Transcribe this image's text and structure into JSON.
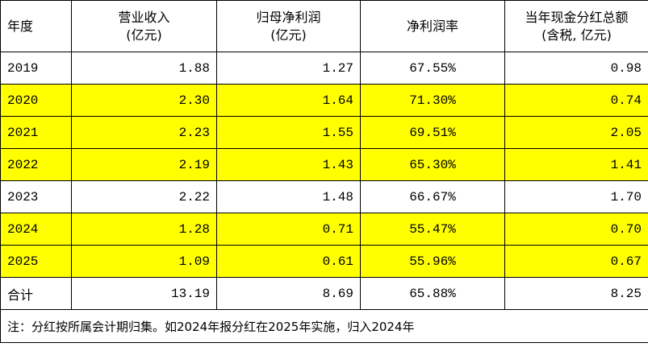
{
  "table": {
    "highlight_color": "#ffff00",
    "header": [
      [
        "年度"
      ],
      [
        "营业收入",
        "(亿元)"
      ],
      [
        "归母净利润",
        "(亿元)"
      ],
      [
        "净利润率"
      ],
      [
        "当年现金分红总额",
        "(含税, 亿元)"
      ]
    ],
    "rows": [
      {
        "cells": [
          "2019",
          "1.88",
          "1.27",
          "67.55%",
          "0.98"
        ],
        "highlight": false
      },
      {
        "cells": [
          "2020",
          "2.30",
          "1.64",
          "71.30%",
          "0.74"
        ],
        "highlight": true
      },
      {
        "cells": [
          "2021",
          "2.23",
          "1.55",
          "69.51%",
          "2.05"
        ],
        "highlight": true
      },
      {
        "cells": [
          "2022",
          "2.19",
          "1.43",
          "65.30%",
          "1.41"
        ],
        "highlight": true
      },
      {
        "cells": [
          "2023",
          "2.22",
          "1.48",
          "66.67%",
          "1.70"
        ],
        "highlight": false
      },
      {
        "cells": [
          "2024",
          "1.28",
          "0.71",
          "55.47%",
          "0.70"
        ],
        "highlight": true
      },
      {
        "cells": [
          "2025",
          "1.09",
          "0.61",
          "55.96%",
          "0.67"
        ],
        "highlight": true
      },
      {
        "cells": [
          "合计",
          "13.19",
          "8.69",
          "65.88%",
          "8.25"
        ],
        "highlight": false
      }
    ],
    "note": "注：分红按所属会计期归集。如2024年报分红在2025年实施，归入2024年"
  }
}
